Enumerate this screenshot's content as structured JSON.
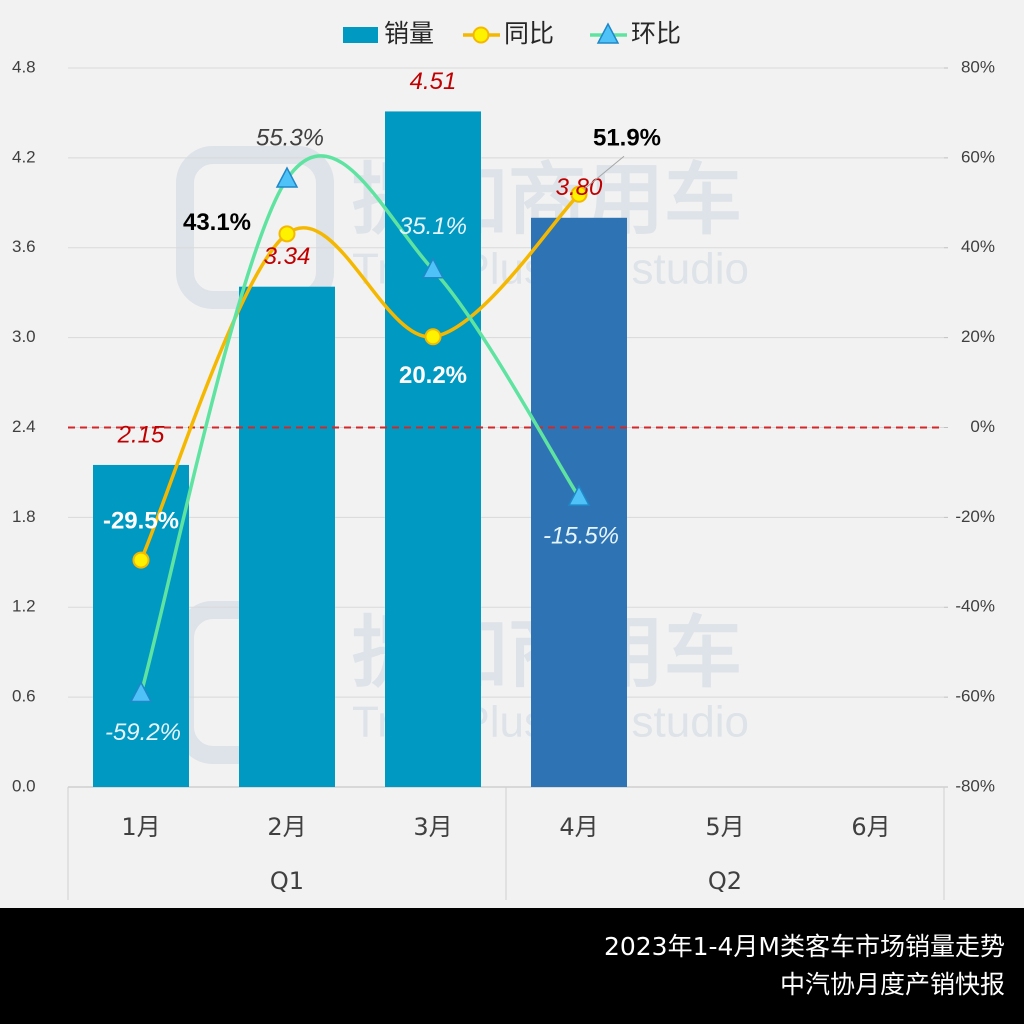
{
  "chart_data": {
    "type": "bar_line",
    "categories": [
      "1月",
      "2月",
      "3月",
      "4月",
      "5月",
      "6月"
    ],
    "groups": [
      "Q1",
      "Q2"
    ],
    "series": [
      {
        "name": "销量",
        "type": "bar",
        "colors": [
          "#0099c2",
          "#0099c2",
          "#0099c2",
          "#2e74b5",
          null,
          null
        ],
        "values": [
          2.15,
          3.34,
          4.51,
          3.8,
          null,
          null
        ],
        "value_labels": [
          "2.15",
          "3.34",
          "4.51",
          "3.80",
          null,
          null
        ]
      },
      {
        "name": "同比",
        "type": "line",
        "axis": "y2",
        "color": "#f5b800",
        "values": [
          -29.5,
          43.1,
          20.2,
          51.9,
          null,
          null
        ],
        "value_labels": [
          "-29.5%",
          "43.1%",
          "20.2%",
          "51.9%",
          null,
          null
        ]
      },
      {
        "name": "环比",
        "type": "line",
        "axis": "y2",
        "color": "#5fe3a1",
        "values": [
          -59.2,
          55.3,
          35.1,
          -15.5,
          null,
          null
        ],
        "value_labels": [
          "-59.2%",
          "55.3%",
          "35.1%",
          "-15.5%",
          null,
          null
        ]
      }
    ],
    "ylim": [
      0,
      4.8
    ],
    "yticks": [
      {
        "value": 0,
        "label": "0.0"
      },
      0.6,
      1.2,
      1.8,
      2.4,
      {
        "value": 3,
        "label": "3.0"
      },
      3.6,
      4.2,
      4.8
    ],
    "y2lim": [
      -80,
      80
    ],
    "y2ticks": [
      {
        "value": -80,
        "label": "-80%"
      },
      {
        "value": -60,
        "label": "-60%"
      },
      {
        "value": -40,
        "label": "-40%"
      },
      {
        "value": -20,
        "label": "-20%"
      },
      {
        "value": 0,
        "label": "0%"
      },
      {
        "value": 20,
        "label": "20%"
      },
      {
        "value": 40,
        "label": "40%"
      },
      {
        "value": 60,
        "label": "60%"
      },
      {
        "value": 80,
        "label": "80%"
      }
    ],
    "reference_line": {
      "axis": "y2",
      "value": 0,
      "color": "#d62728"
    },
    "watermark": {
      "name": "提加商用车",
      "sub": "TruckPlus  CV studio"
    },
    "footer": [
      "2023年1-4月M类客车市场销量走势",
      "中汽协月度产销快报"
    ]
  }
}
